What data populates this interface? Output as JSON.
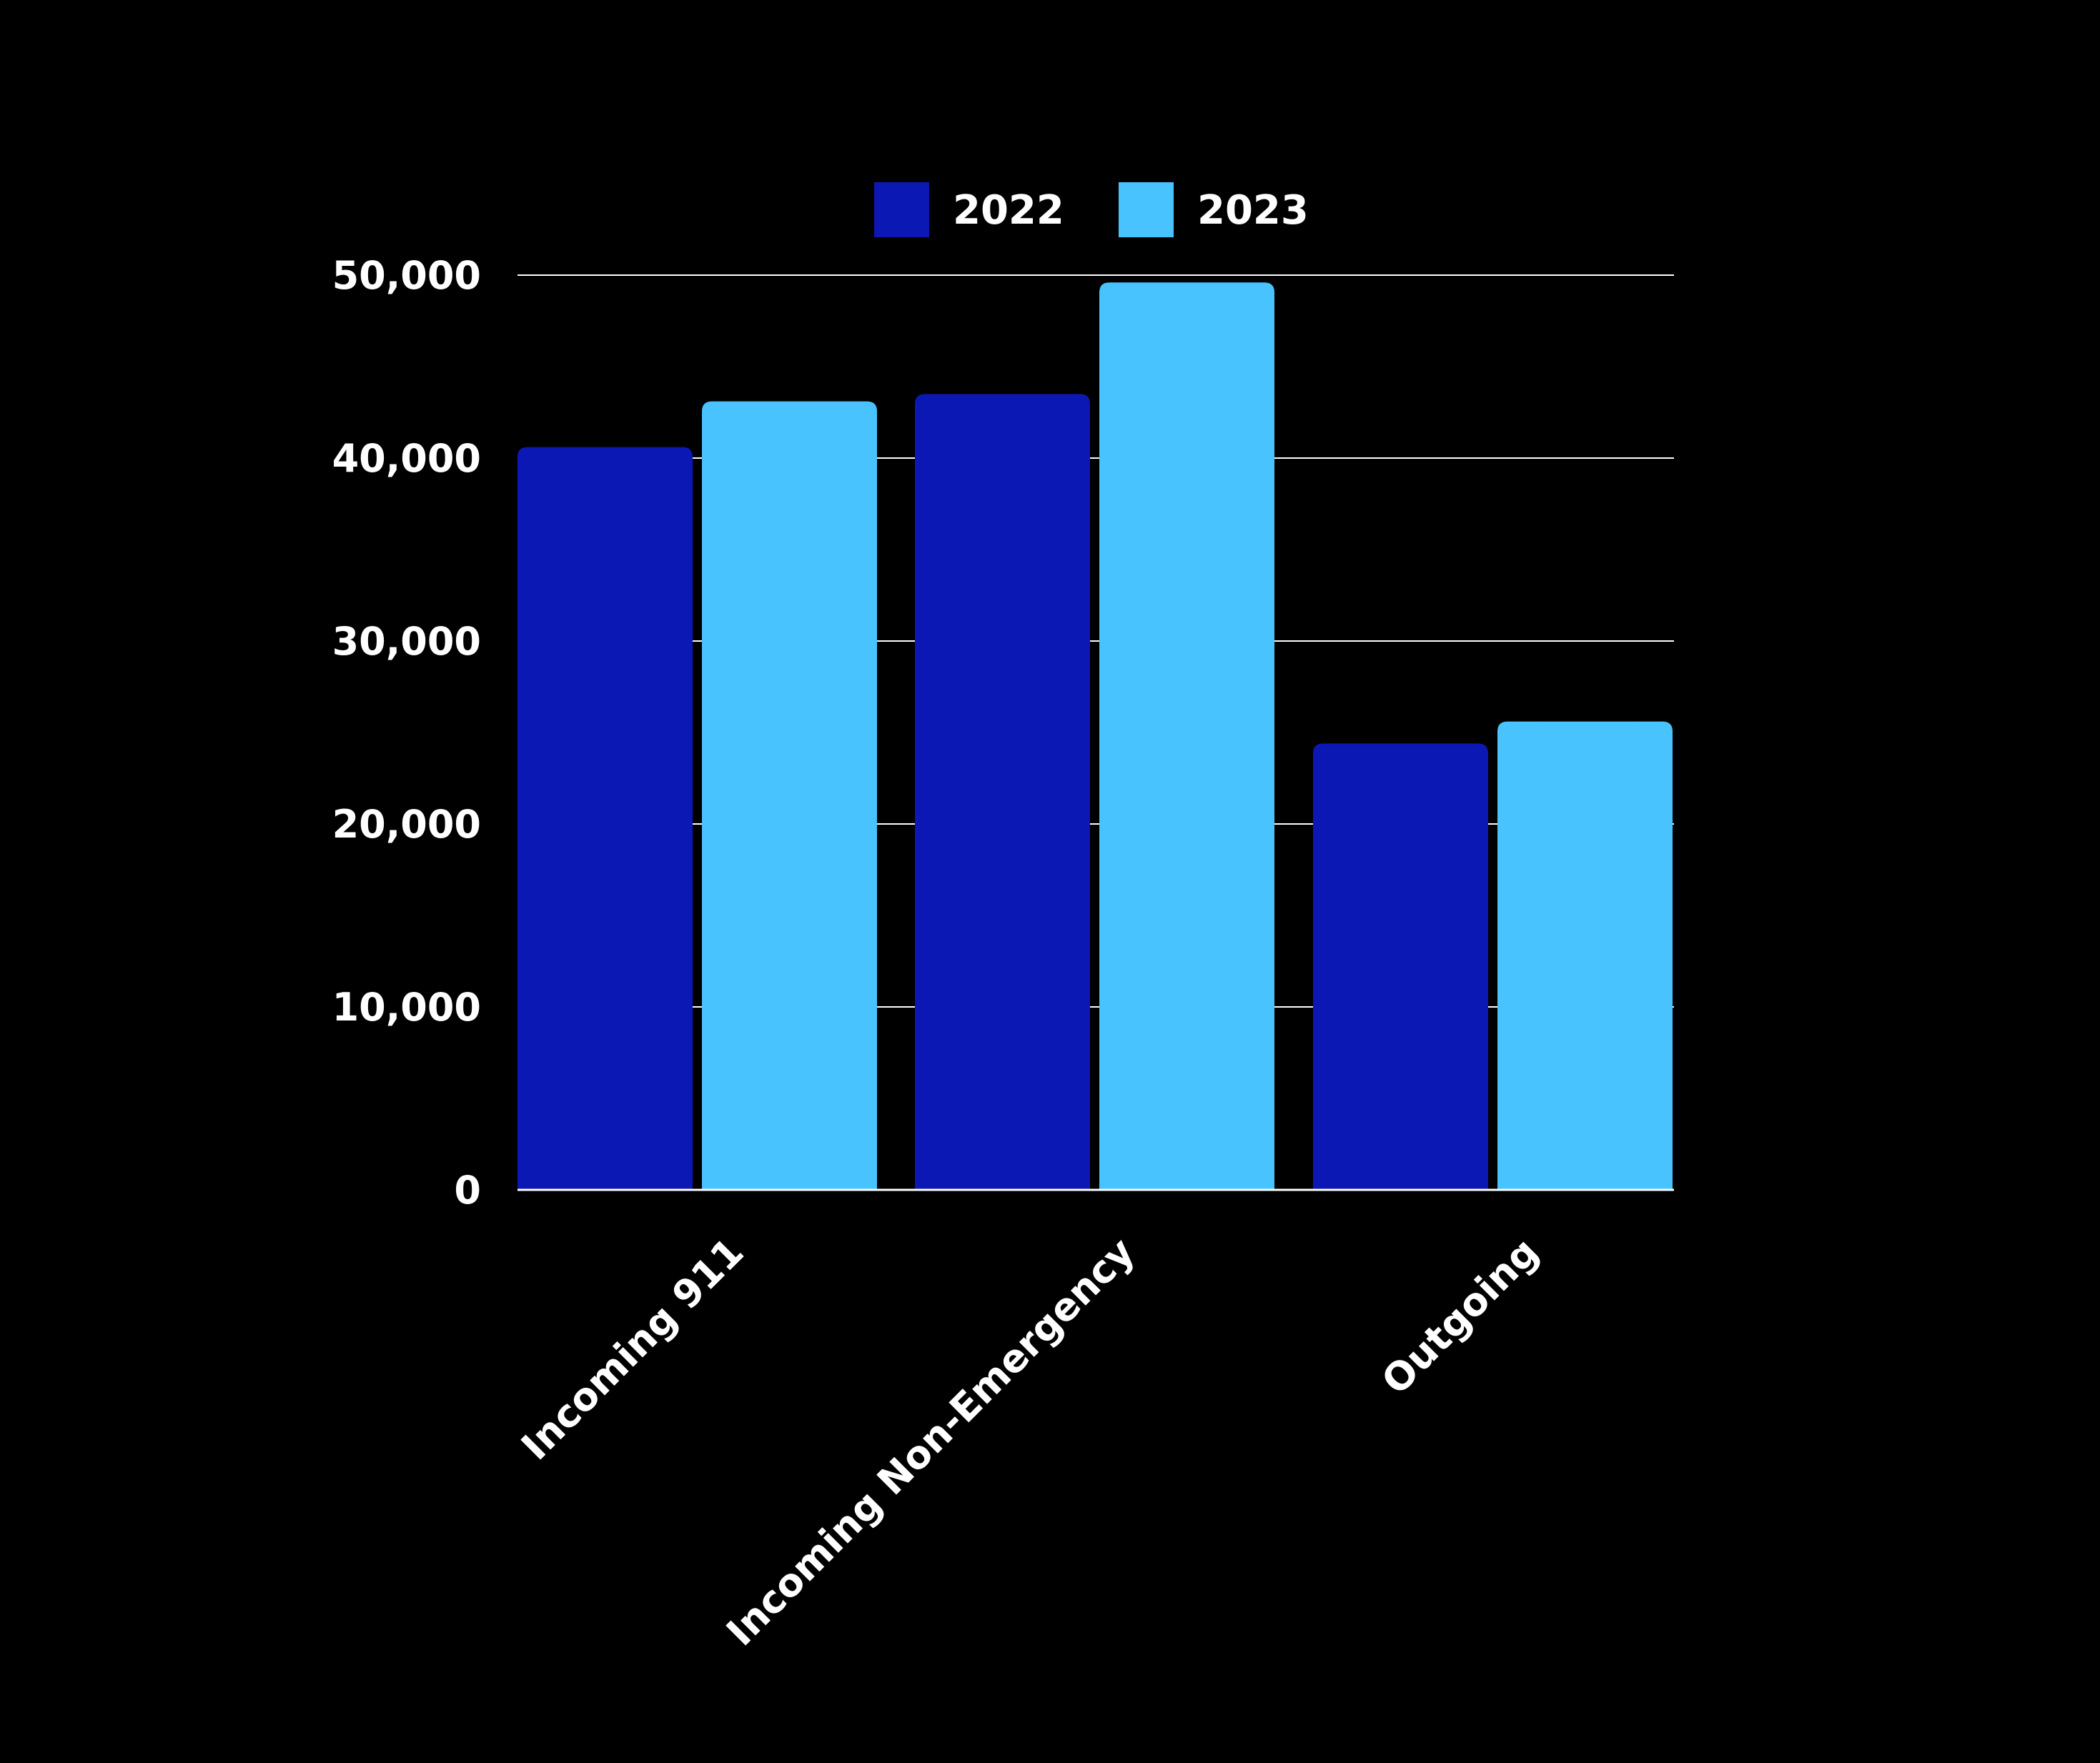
{
  "chart_data": {
    "type": "bar",
    "title": "",
    "xlabel": "",
    "ylabel": "",
    "categories": [
      "Incoming 911",
      "Incoming Non-Emergency",
      "Outgoing"
    ],
    "series": [
      {
        "name": "2022",
        "color": "#0c18b3",
        "values": [
          40600,
          43500,
          24400
        ]
      },
      {
        "name": "2023",
        "color": "#48c3fe",
        "values": [
          43100,
          49600,
          25600
        ]
      }
    ],
    "ylim": [
      0,
      50000
    ],
    "yticks": [
      0,
      10000,
      20000,
      30000,
      40000,
      50000
    ],
    "ytick_labels": [
      "0",
      "10,000",
      "20,000",
      "30,000",
      "40,000",
      "50,000"
    ],
    "grid": true,
    "legend_position": "top-center",
    "background_color": "#000000",
    "text_color": "#ffffff"
  }
}
